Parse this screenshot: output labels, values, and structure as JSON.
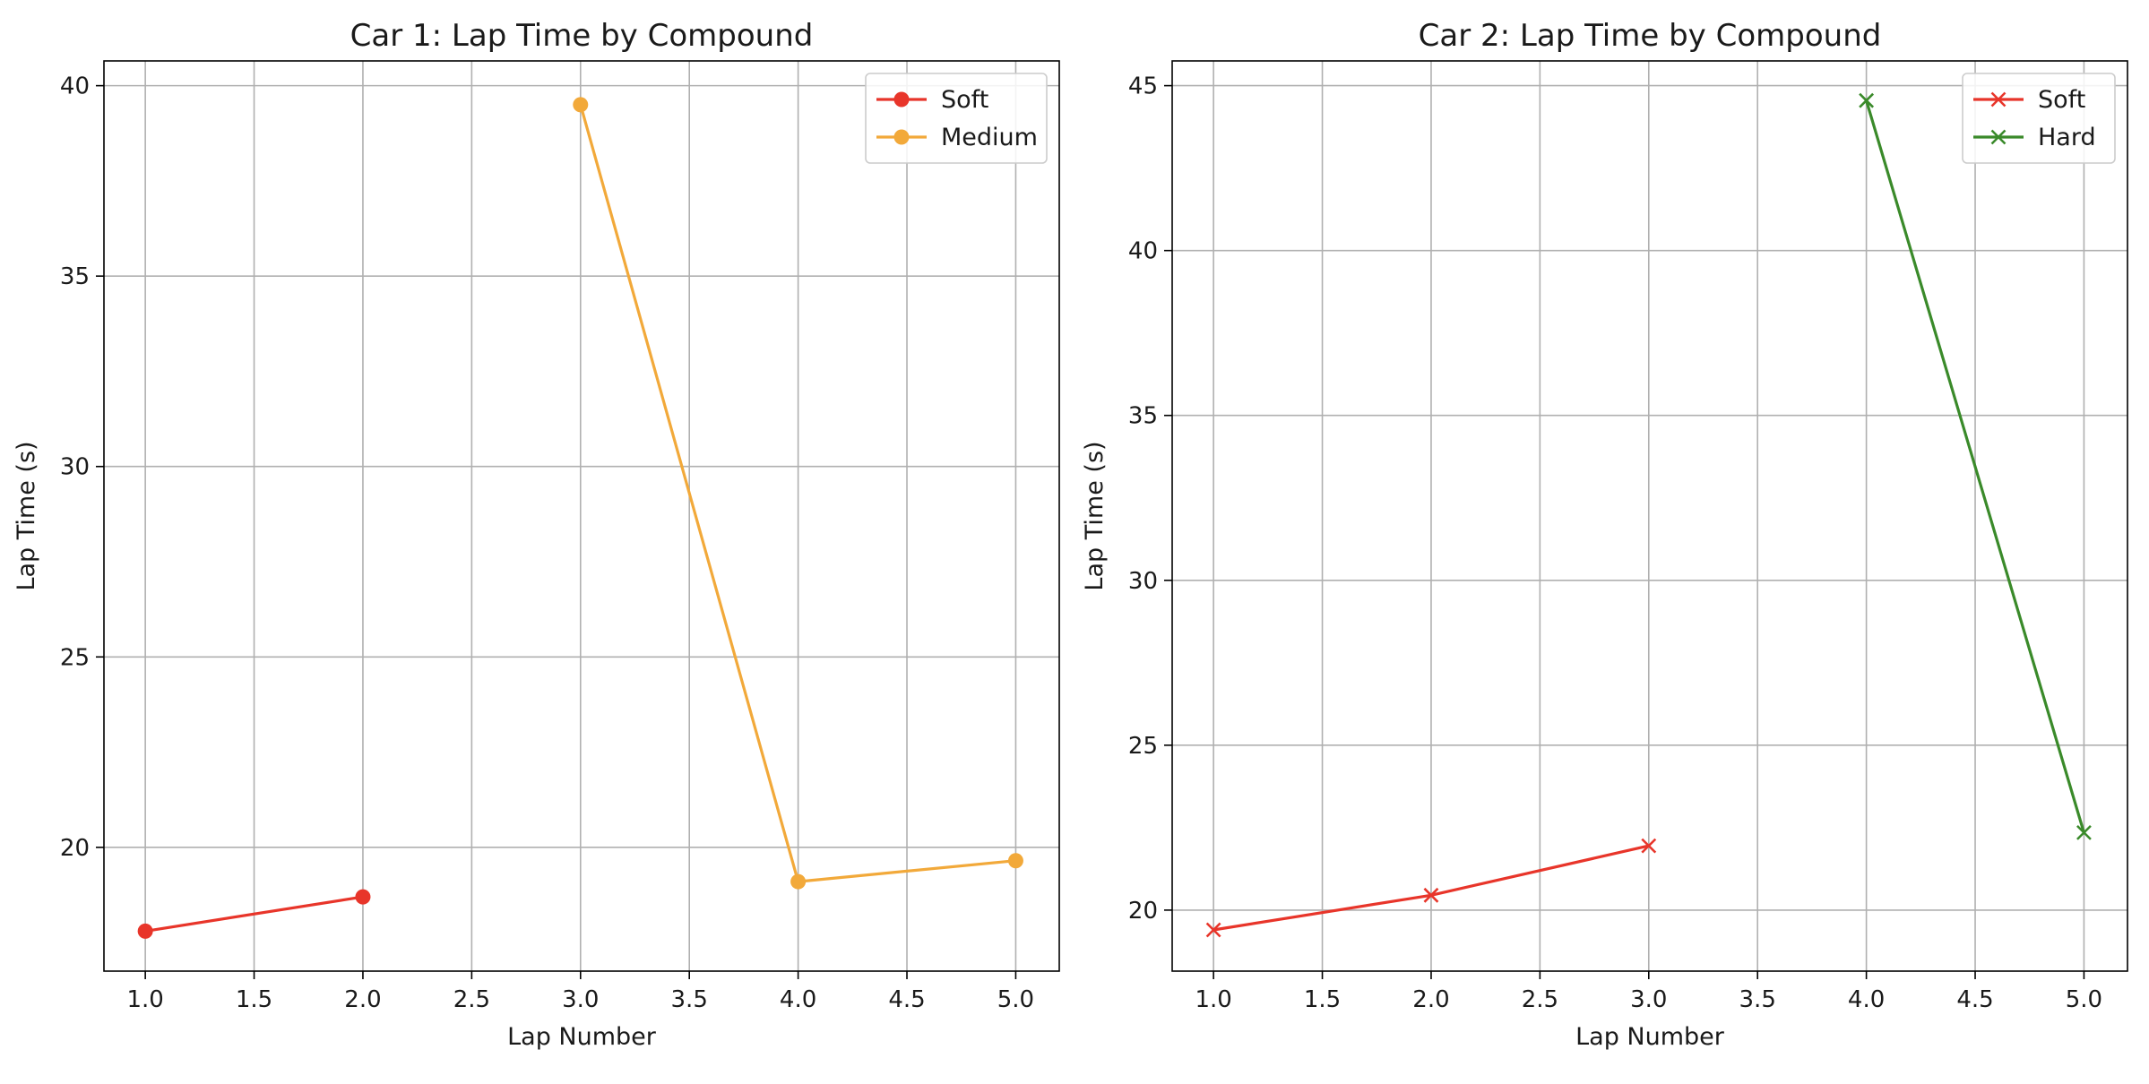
{
  "chart_data": [
    {
      "type": "line",
      "title": "Car 1: Lap Time by Compound",
      "xlabel": "Lap Number",
      "ylabel": "Lap Time (s)",
      "xlim": [
        0.81,
        5.2
      ],
      "ylim": [
        16.75,
        40.65
      ],
      "xticks": [
        "1.0",
        "1.5",
        "2.0",
        "2.5",
        "3.0",
        "3.5",
        "4.0",
        "4.5",
        "5.0"
      ],
      "yticks": [
        "20",
        "25",
        "30",
        "35",
        "40"
      ],
      "grid": true,
      "legend_position": "top-right",
      "marker": "circle",
      "series": [
        {
          "name": "Soft",
          "color": "#e8352a",
          "x": [
            1,
            2
          ],
          "y": [
            17.8,
            18.7
          ]
        },
        {
          "name": "Medium",
          "color": "#f2a93a",
          "x": [
            3,
            4,
            5
          ],
          "y": [
            39.5,
            19.1,
            19.65
          ]
        }
      ]
    },
    {
      "type": "line",
      "title": "Car 2: Lap Time by Compound",
      "xlabel": "Lap Number",
      "ylabel": "Lap Time (s)",
      "xlim": [
        0.81,
        5.2
      ],
      "ylim": [
        18.15,
        45.75
      ],
      "xticks": [
        "1.0",
        "1.5",
        "2.0",
        "2.5",
        "3.0",
        "3.5",
        "4.0",
        "4.5",
        "5.0"
      ],
      "yticks": [
        "20",
        "25",
        "30",
        "35",
        "40",
        "45"
      ],
      "grid": true,
      "legend_position": "top-right",
      "marker": "x",
      "series": [
        {
          "name": "Soft",
          "color": "#e8352a",
          "x": [
            1,
            2,
            3
          ],
          "y": [
            19.4,
            20.45,
            21.95
          ]
        },
        {
          "name": "Hard",
          "color": "#3a8a2a",
          "x": [
            4,
            5
          ],
          "y": [
            44.55,
            22.35
          ]
        }
      ]
    }
  ]
}
